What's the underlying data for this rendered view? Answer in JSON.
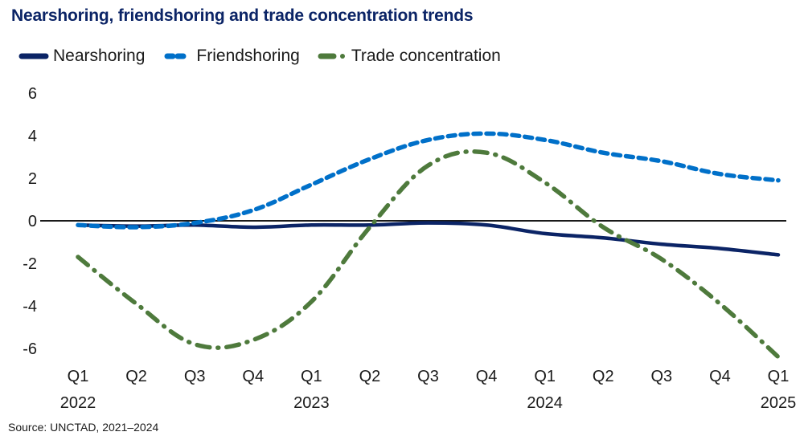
{
  "chart_data": {
    "type": "line",
    "title": "Nearshoring, friendshoring and trade concentration trends",
    "xlabel": "",
    "ylabel": "",
    "ylim": [
      -6,
      6
    ],
    "yticks": [
      "6",
      "4",
      "2",
      "0",
      "-2",
      "-4",
      "-6"
    ],
    "ytick_values": [
      6,
      4,
      2,
      0,
      -2,
      -4,
      -6
    ],
    "x": [
      "Q1",
      "Q2",
      "Q3",
      "Q4",
      "Q1",
      "Q2",
      "Q3",
      "Q4",
      "Q1",
      "Q2",
      "Q3",
      "Q4",
      "Q1"
    ],
    "year_labels": [
      {
        "index": 0,
        "label": "2022"
      },
      {
        "index": 4,
        "label": "2023"
      },
      {
        "index": 8,
        "label": "2024"
      },
      {
        "index": 12,
        "label": "2025"
      }
    ],
    "grid": false,
    "zero_line": true,
    "legend_position": "top-left",
    "series": [
      {
        "name": "Nearshoring",
        "style": "solid",
        "color": "#0b2466",
        "values": [
          -0.2,
          -0.25,
          -0.2,
          -0.3,
          -0.2,
          -0.2,
          -0.1,
          -0.2,
          -0.6,
          -0.8,
          -1.1,
          -1.3,
          -1.6
        ]
      },
      {
        "name": "Friendshoring",
        "style": "dotted",
        "color": "#0070c9",
        "values": [
          -0.2,
          -0.3,
          -0.1,
          0.5,
          1.7,
          2.9,
          3.8,
          4.1,
          3.8,
          3.2,
          2.8,
          2.2,
          1.9
        ]
      },
      {
        "name": "Trade concentration",
        "style": "dash-dot",
        "color": "#4e7a3c",
        "values": [
          -1.7,
          -3.9,
          -5.8,
          -5.6,
          -3.8,
          -0.3,
          2.6,
          3.2,
          1.8,
          -0.3,
          -1.8,
          -3.9,
          -6.4
        ]
      }
    ]
  },
  "source": "Source: UNCTAD, 2021–2024"
}
